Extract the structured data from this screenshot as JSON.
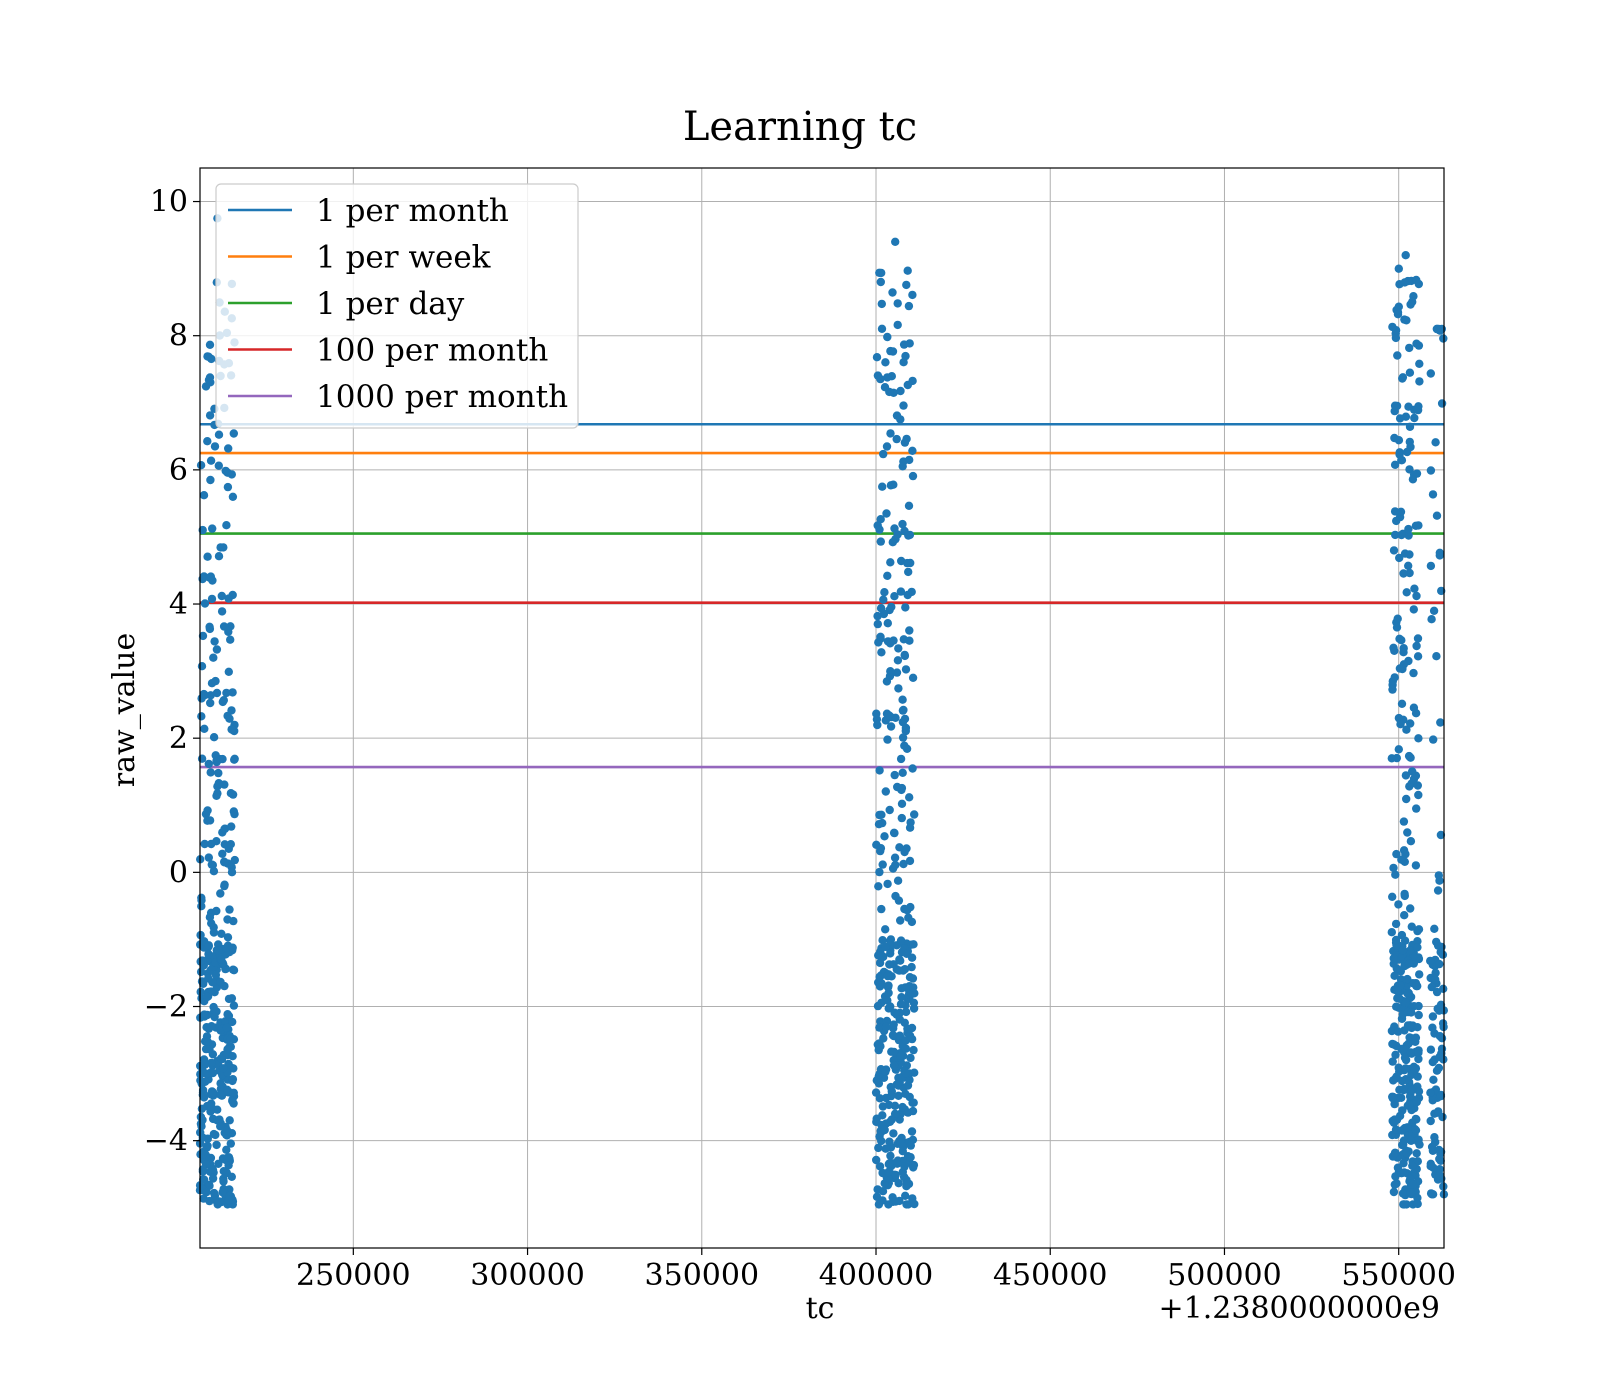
{
  "chart_data": {
    "type": "scatter",
    "title": "Learning tc",
    "xlabel": "tc",
    "ylabel": "raw_value",
    "x_offset_label": "+1.2380000000e9",
    "xlim": [
      1238206000,
      1238563000
    ],
    "ylim": [
      -5.6,
      10.5
    ],
    "x_ticks": [
      1238250000,
      1238300000,
      1238350000,
      1238400000,
      1238450000,
      1238500000,
      1238550000
    ],
    "x_tick_labels": [
      "250000",
      "300000",
      "350000",
      "400000",
      "450000",
      "500000",
      "550000"
    ],
    "y_ticks": [
      -4,
      -2,
      0,
      2,
      4,
      6,
      8,
      10
    ],
    "y_tick_labels": [
      "−4",
      "−2",
      "0",
      "2",
      "4",
      "6",
      "8",
      "10"
    ],
    "grid": true,
    "legend_position": "top-left",
    "lines": [
      {
        "name": "1 per month",
        "y": 6.68,
        "color": "#1f77b4"
      },
      {
        "name": "1 per week",
        "y": 6.25,
        "color": "#ff7f0e"
      },
      {
        "name": "1 per day",
        "y": 5.05,
        "color": "#2ca02c"
      },
      {
        "name": "100 per month",
        "y": 4.02,
        "color": "#d62728"
      },
      {
        "name": "1000 per month",
        "y": 1.57,
        "color": "#9467bd"
      }
    ],
    "scatter_color": "#1f77b4",
    "clusters": [
      {
        "x_range": [
          1238206000,
          1238216000
        ],
        "y_range": [
          -4.95,
          9.75
        ],
        "count": 420
      },
      {
        "x_range": [
          1238400000,
          1238411000
        ],
        "y_range": [
          -4.95,
          9.4
        ],
        "count": 420
      },
      {
        "x_range": [
          1238548000,
          1238556000
        ],
        "y_range": [
          -4.95,
          9.2
        ],
        "count": 380
      },
      {
        "x_range": [
          1238559000,
          1238563000
        ],
        "y_range": [
          -4.8,
          8.1
        ],
        "count": 100
      }
    ]
  }
}
